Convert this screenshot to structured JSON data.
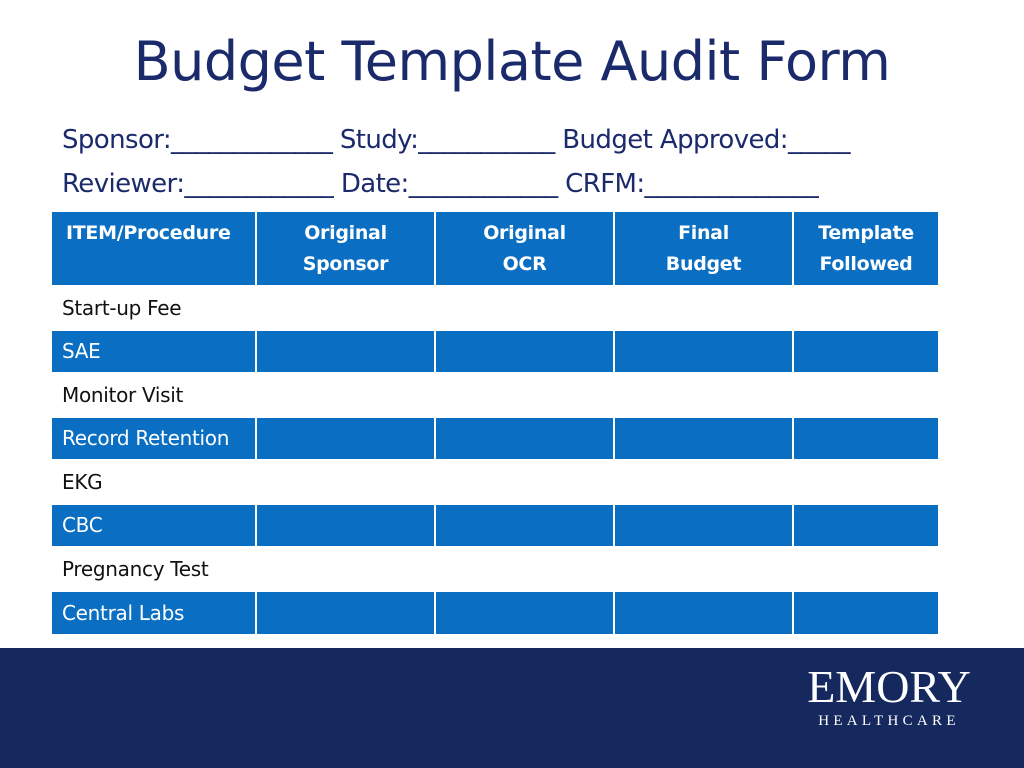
{
  "title": "Budget Template Audit Form",
  "fields": {
    "line1": "Sponsor:_____________ Study:___________ Budget Approved:_____",
    "line2": "Reviewer:____________ Date:____________ CRFM:______________"
  },
  "table": {
    "headers": [
      [
        "ITEM/Procedure"
      ],
      [
        "Original",
        "Sponsor"
      ],
      [
        "Original",
        "OCR"
      ],
      [
        "Final",
        "Budget"
      ],
      [
        "Template",
        "Followed"
      ]
    ],
    "rows": [
      "Start-up Fee",
      "SAE",
      "Monitor Visit",
      "Record Retention",
      "EKG",
      "CBC",
      "Pregnancy Test",
      "Central Labs"
    ]
  },
  "logo": {
    "name": "EMORY",
    "sub": "HEALTHCARE"
  },
  "colors": {
    "title": "#1b2a6b",
    "table_blue": "#0a6fc2",
    "footer": "#15295e"
  }
}
